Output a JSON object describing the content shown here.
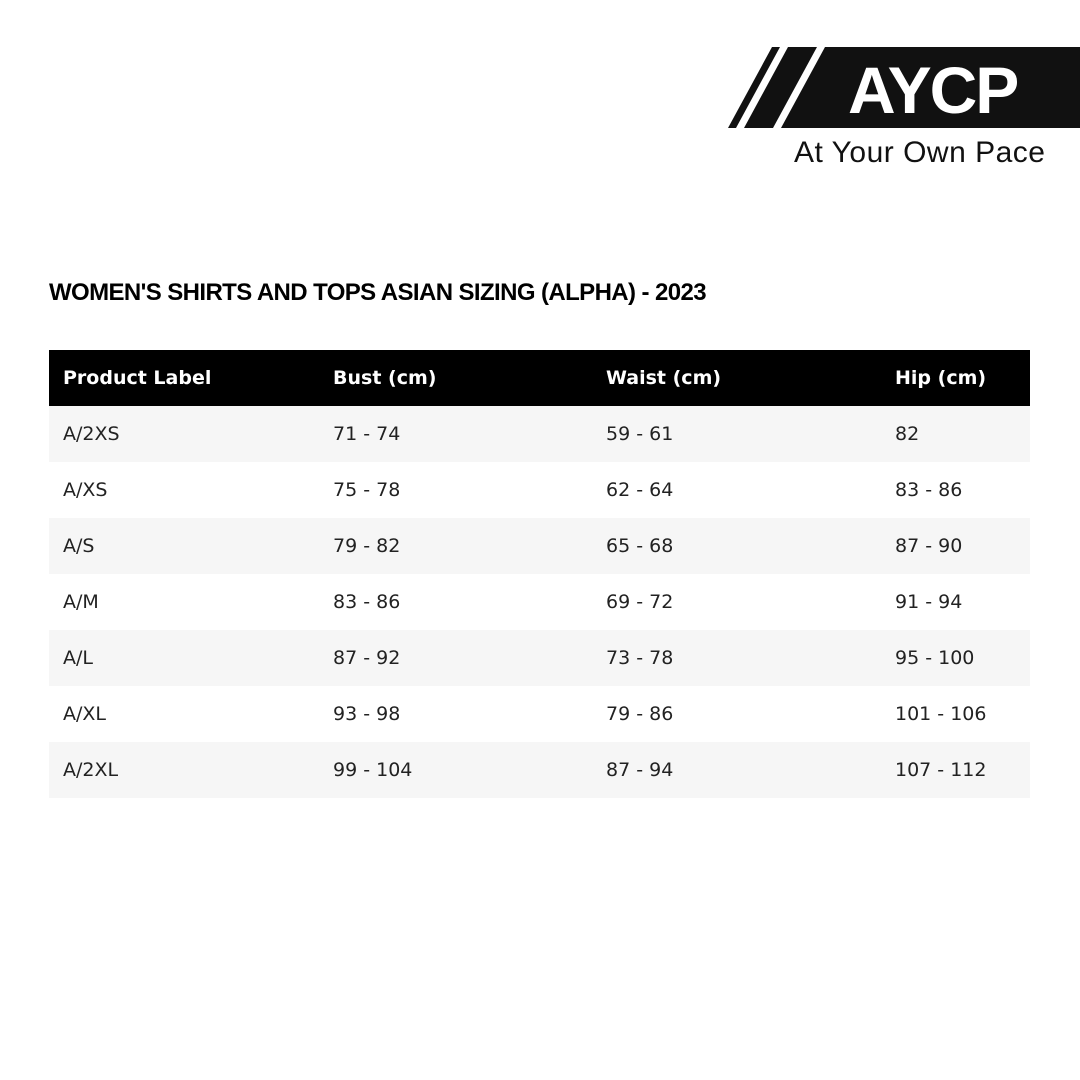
{
  "logo": {
    "text": "AYCP",
    "tagline": "At Your Own Pace"
  },
  "title": "WOMEN'S SHIRTS AND TOPS ASIAN SIZING (ALPHA) - 2023",
  "table": {
    "headers": [
      "Product Label",
      "Bust (cm)",
      "Waist (cm)",
      "Hip (cm)"
    ],
    "rows": [
      [
        "A/2XS",
        "71 - 74",
        "59 - 61",
        "82"
      ],
      [
        "A/XS",
        "75 - 78",
        "62 - 64",
        "83 - 86"
      ],
      [
        "A/S",
        "79 - 82",
        "65 - 68",
        "87 - 90"
      ],
      [
        "A/M",
        "83 - 86",
        "69 - 72",
        "91 - 94"
      ],
      [
        "A/L",
        "87 - 92",
        "73 - 78",
        "95 - 100"
      ],
      [
        "A/XL",
        "93 - 98",
        "79 - 86",
        "101 - 106"
      ],
      [
        "A/2XL",
        "99 - 104",
        "87 - 94",
        "107 - 112"
      ]
    ]
  }
}
